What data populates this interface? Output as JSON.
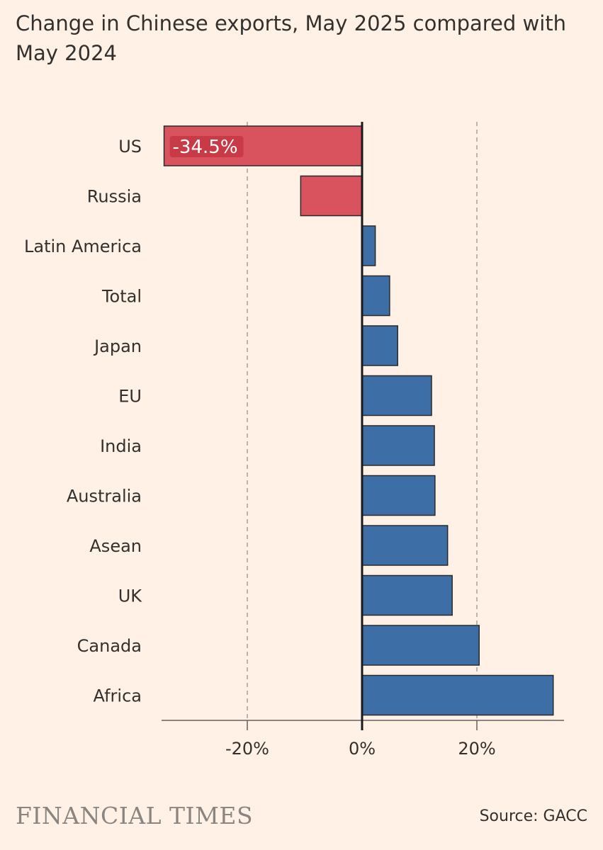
{
  "chart_data": {
    "type": "bar",
    "orientation": "horizontal",
    "title": "Change in Chinese exports, May 2025 compared with May 2024",
    "categories": [
      "US",
      "Russia",
      "Latin America",
      "Total",
      "Japan",
      "EU",
      "India",
      "Australia",
      "Asean",
      "UK",
      "Canada",
      "Africa"
    ],
    "values": [
      -34.5,
      -10.7,
      2.3,
      4.8,
      6.2,
      12.1,
      12.6,
      12.7,
      14.9,
      15.7,
      20.4,
      33.3
    ],
    "xlim": [
      -35,
      35
    ],
    "ticks": [
      -20,
      0,
      20
    ],
    "tick_labels": [
      "-20%",
      "0%",
      "20%"
    ],
    "data_labels": [
      {
        "category": "US",
        "text": "-34.5%"
      }
    ],
    "grid": "dashed vertical at ticks",
    "colors": {
      "negative": "#d9535f",
      "positive": "#3d6fa6",
      "outline": "#2a2a2a"
    },
    "source": "Source: GACC",
    "brand": "FINANCIAL TIMES"
  }
}
